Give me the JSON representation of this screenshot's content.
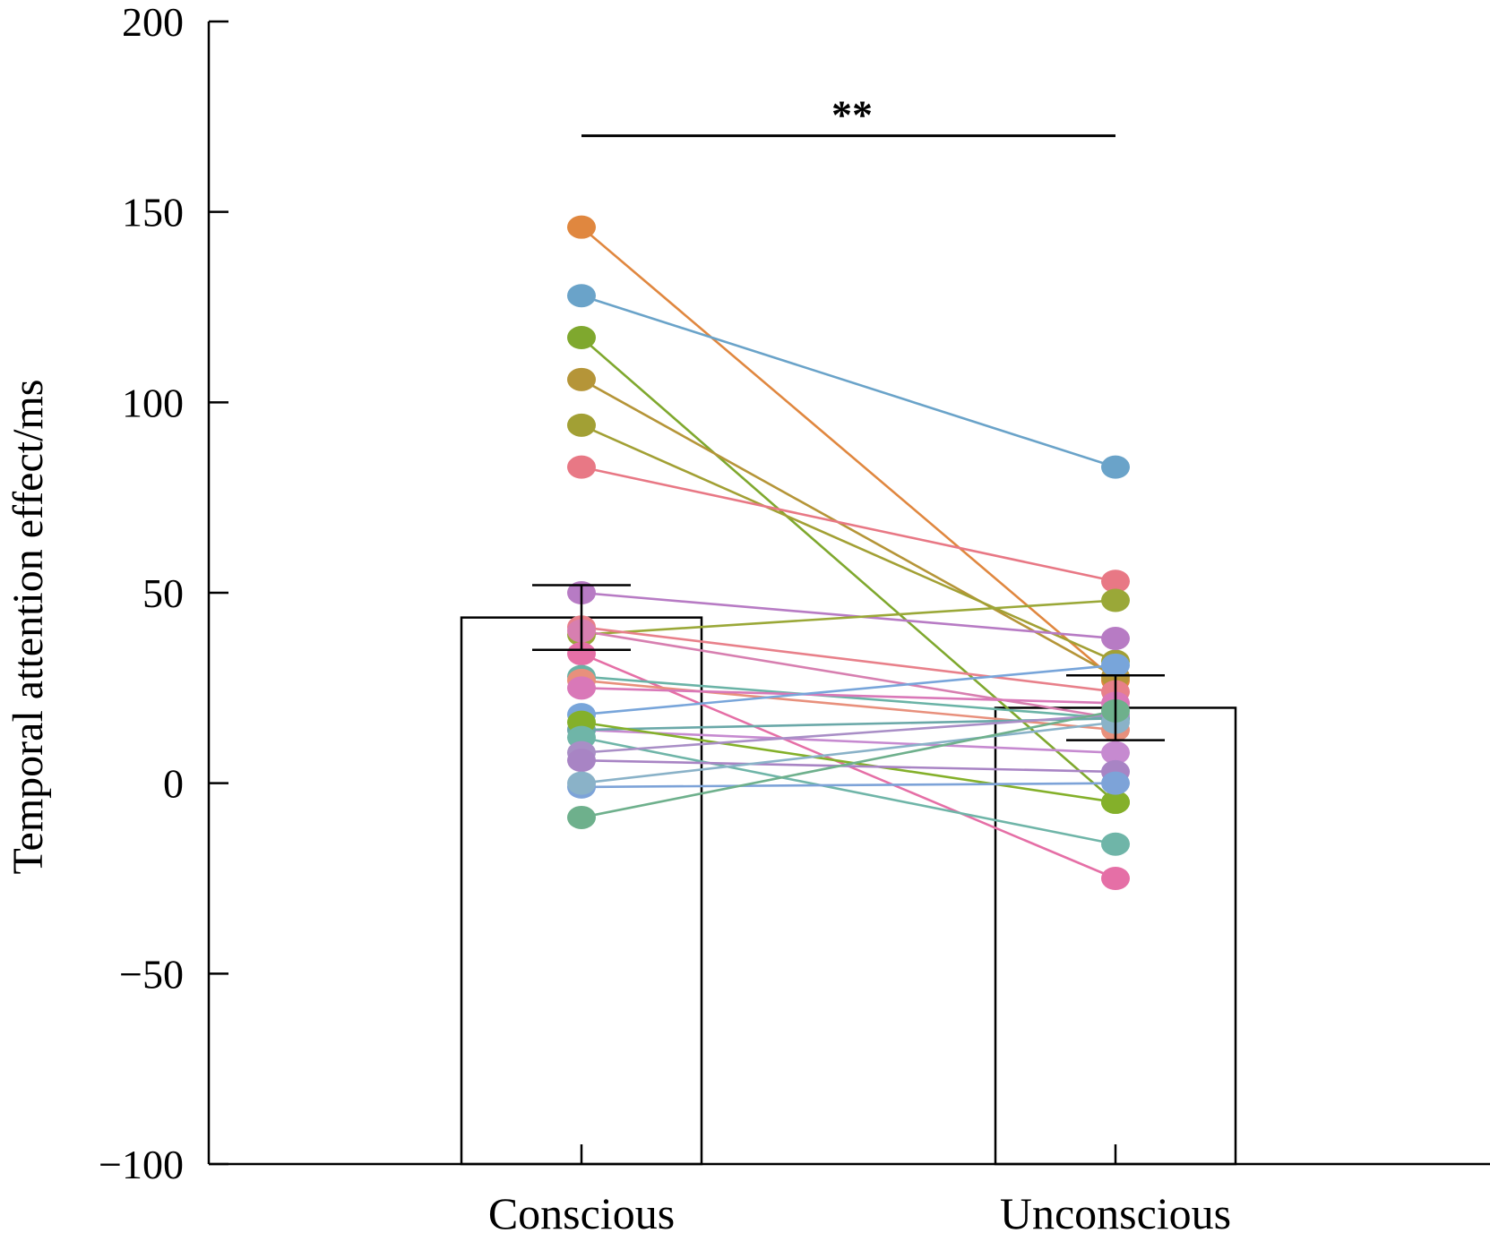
{
  "chart_data": {
    "type": "bar",
    "title": "",
    "xlabel": "",
    "ylabel": "Temporal attention effect/ms",
    "ylim": [
      -100,
      200
    ],
    "yticks": [
      -100,
      -50,
      0,
      50,
      100,
      150,
      200
    ],
    "ytick_labels": [
      "−100",
      "−50",
      "0",
      "50",
      "100",
      "150",
      "200"
    ],
    "grid": false,
    "categories": [
      "Conscious",
      "Unconscious"
    ],
    "means": [
      43.5,
      19.8
    ],
    "errors": [
      8.5,
      8.5
    ],
    "significance": {
      "label": "**",
      "y": 170,
      "from": 0,
      "to": 1
    },
    "participants": [
      {
        "color": "#e0873f",
        "values": [
          146,
          27
        ]
      },
      {
        "color": "#6aa3c9",
        "values": [
          128,
          83
        ]
      },
      {
        "color": "#7fa82e",
        "values": [
          117,
          -5
        ]
      },
      {
        "color": "#b59538",
        "values": [
          106,
          28
        ]
      },
      {
        "color": "#a2a034",
        "values": [
          94,
          32
        ]
      },
      {
        "color": "#e87885",
        "values": [
          83,
          53
        ]
      },
      {
        "color": "#b77bc4",
        "values": [
          50,
          38
        ]
      },
      {
        "color": "#9aa838",
        "values": [
          39,
          48
        ]
      },
      {
        "color": "#e8808a",
        "values": [
          41,
          24
        ]
      },
      {
        "color": "#d77fb0",
        "values": [
          40,
          17
        ]
      },
      {
        "color": "#e56fa6",
        "values": [
          34,
          -25
        ]
      },
      {
        "color": "#6ab3a6",
        "values": [
          28,
          17
        ]
      },
      {
        "color": "#e8907c",
        "values": [
          27,
          14
        ]
      },
      {
        "color": "#d978b8",
        "values": [
          25,
          21
        ]
      },
      {
        "color": "#78a5da",
        "values": [
          18,
          31
        ]
      },
      {
        "color": "#c68ad0",
        "values": [
          14,
          8
        ]
      },
      {
        "color": "#6aa8a8",
        "values": [
          14,
          17
        ]
      },
      {
        "color": "#84b02a",
        "values": [
          16,
          -5
        ]
      },
      {
        "color": "#6fb5a8",
        "values": [
          12,
          -16
        ]
      },
      {
        "color": "#a98ec6",
        "values": [
          8,
          18
        ]
      },
      {
        "color": "#a884c4",
        "values": [
          6,
          3
        ]
      },
      {
        "color": "#7da3d8",
        "values": [
          -1,
          0
        ]
      },
      {
        "color": "#8ab2c8",
        "values": [
          0,
          16
        ]
      },
      {
        "color": "#6eb08c",
        "values": [
          -9,
          19
        ]
      }
    ]
  }
}
